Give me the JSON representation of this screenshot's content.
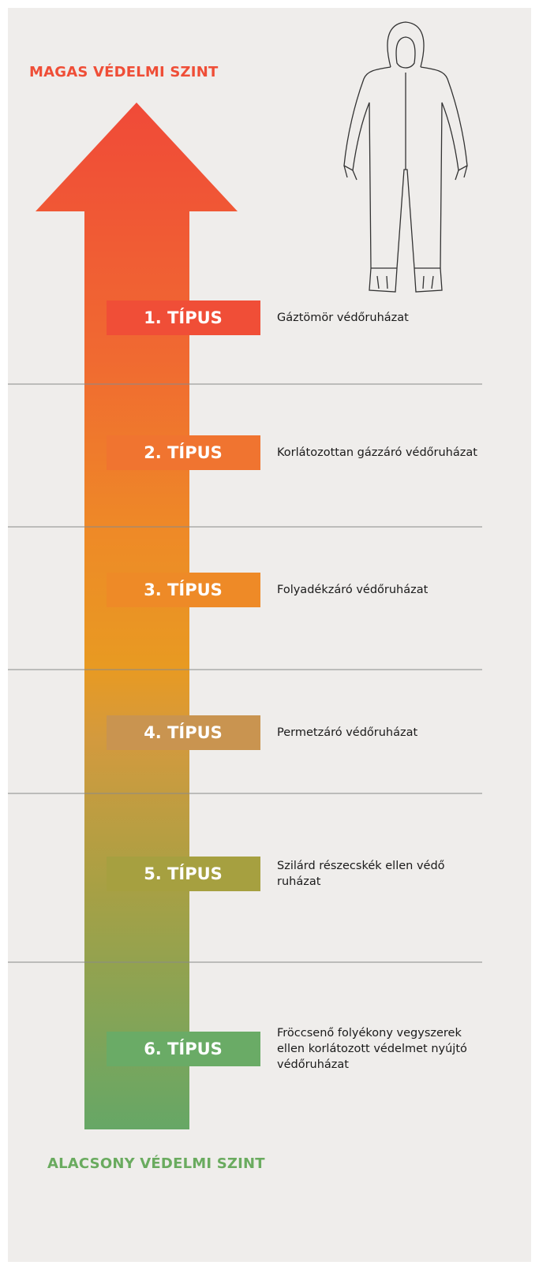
{
  "header": {
    "top_label": "MAGAS VÉDELMI SZINT",
    "bottom_label": "ALACSONY VÉDELMI SZINT"
  },
  "items": [
    {
      "type": "1. TÍPUS",
      "description": "Gáztömör védőruházat"
    },
    {
      "type": "2. TÍPUS",
      "description": "Korlátozottan gázzáró védőruházat"
    },
    {
      "type": "3. TÍPUS",
      "description": "Folyadékzáró védőruházat"
    },
    {
      "type": "4. TÍPUS",
      "description": "Permetzáró védőruházat"
    },
    {
      "type": "5. TÍPUS",
      "description": "Szilárd részecskék ellen védő ruházat"
    },
    {
      "type": "6. TÍPUS",
      "description": "Fröccsenő folyékony vegyszerek ellen korlátozott védelmet nyújtó védőruházat"
    }
  ]
}
